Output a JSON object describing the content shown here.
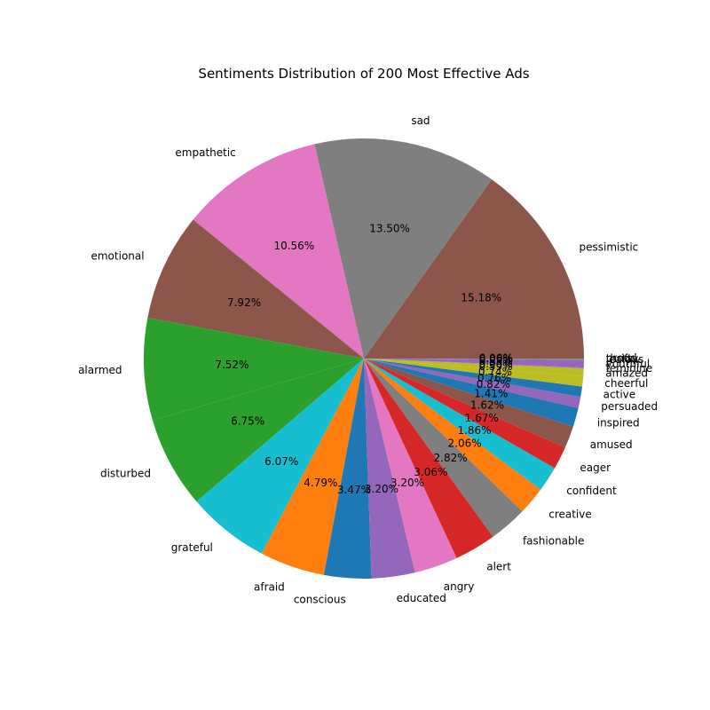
{
  "chart_data": {
    "type": "pie",
    "title": "Sentiments Distribution of 200 Most Effective Ads",
    "start_angle_deg": 0,
    "direction": "counterclockwise",
    "legend": "none",
    "slices": [
      {
        "label": "pessimistic",
        "value": 15.18,
        "pct_text": "15.18%",
        "color": "#8c564b"
      },
      {
        "label": "sad",
        "value": 13.5,
        "pct_text": "13.50%",
        "color": "#7f7f7f"
      },
      {
        "label": "empathetic",
        "value": 10.56,
        "pct_text": "10.56%",
        "color": "#e377c2"
      },
      {
        "label": "emotional",
        "value": 7.92,
        "pct_text": "7.92%",
        "color": "#8c564b"
      },
      {
        "label": "alarmed",
        "value": 7.52,
        "pct_text": "7.52%",
        "color": "#2ca02c"
      },
      {
        "label": "disturbed",
        "value": 6.75,
        "pct_text": "6.75%",
        "color": "#2ca02c"
      },
      {
        "label": "grateful",
        "value": 6.07,
        "pct_text": "6.07%",
        "color": "#17becf"
      },
      {
        "label": "afraid",
        "value": 4.79,
        "pct_text": "4.79%",
        "color": "#ff7f0e"
      },
      {
        "label": "conscious",
        "value": 3.47,
        "pct_text": "3.47%",
        "color": "#1f77b4"
      },
      {
        "label": "educated",
        "value": 3.2,
        "pct_text": "3.20%",
        "color": "#9467bd"
      },
      {
        "label": "angry",
        "value": 3.2,
        "pct_text": "3.20%",
        "color": "#e377c2"
      },
      {
        "label": "alert",
        "value": 3.06,
        "pct_text": "3.06%",
        "color": "#d62728"
      },
      {
        "label": "fashionable",
        "value": 2.82,
        "pct_text": "2.82%",
        "color": "#7f7f7f"
      },
      {
        "label": "creative",
        "value": 2.06,
        "pct_text": "2.06%",
        "color": "#ff7f0e"
      },
      {
        "label": "confident",
        "value": 1.86,
        "pct_text": "1.86%",
        "color": "#17becf"
      },
      {
        "label": "eager",
        "value": 1.67,
        "pct_text": "1.67%",
        "color": "#d62728"
      },
      {
        "label": "amused",
        "value": 1.62,
        "pct_text": "1.62%",
        "color": "#8c564b"
      },
      {
        "label": "inspired",
        "value": 1.41,
        "pct_text": "1.41%",
        "color": "#1f77b4"
      },
      {
        "label": "persuaded",
        "value": 0.82,
        "pct_text": "0.82%",
        "color": "#9467bd"
      },
      {
        "label": "active",
        "value": 0.76,
        "pct_text": "0.76%",
        "color": "#1f77b4"
      },
      {
        "label": "cheerful",
        "value": 0.74,
        "pct_text": "0.74%",
        "color": "#bcbd22"
      },
      {
        "label": "amazed",
        "value": 0.59,
        "pct_text": "0.59%",
        "color": "#bcbd22"
      },
      {
        "label": "feminine",
        "value": 0.06,
        "pct_text": "0.06%",
        "color": "#9467bd"
      },
      {
        "label": "youthful",
        "value": 0.53,
        "pct_text": "0.53%",
        "color": "#9467bd"
      },
      {
        "label": "jealous",
        "value": 0.06,
        "pct_text": "0.06%",
        "color": "#7f7f7f"
      },
      {
        "label": "thrifty",
        "value": 0.06,
        "pct_text": "0.06%",
        "color": "#7f7f7f"
      },
      {
        "label": "proud",
        "value": 0.0,
        "pct_text": "0.00%",
        "color": "#7f7f7f"
      }
    ]
  }
}
